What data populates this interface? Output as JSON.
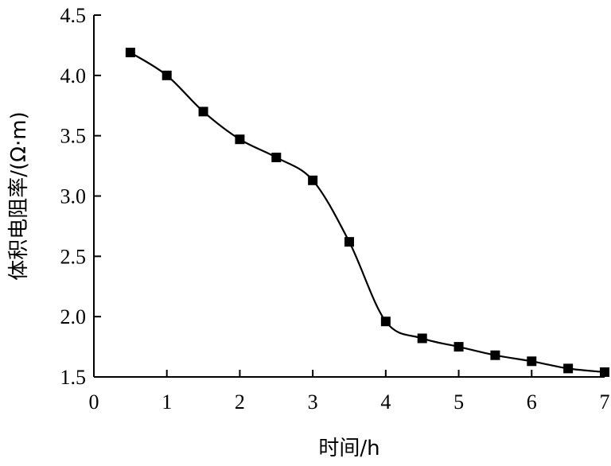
{
  "chart_data": {
    "type": "line",
    "title": "",
    "xlabel": "时间/h",
    "ylabel": "体积电阻率/(Ω·m)",
    "xlim": [
      0,
      7
    ],
    "ylim": [
      1.5,
      4.5
    ],
    "xticks": [
      0,
      1,
      2,
      3,
      4,
      5,
      6,
      7
    ],
    "yticks": [
      1.5,
      2.0,
      2.5,
      3.0,
      3.5,
      4.0,
      4.5
    ],
    "xtick_labels": [
      "0",
      "1",
      "2",
      "3",
      "4",
      "5",
      "6",
      "7"
    ],
    "ytick_labels": [
      "1.5",
      "2.0",
      "2.5",
      "3.0",
      "3.5",
      "4.0",
      "4.5"
    ],
    "grid": false,
    "legend": "none",
    "series": [
      {
        "marker": "square",
        "color": "#000000",
        "x": [
          0.5,
          1.0,
          1.5,
          2.0,
          2.5,
          3.0,
          3.5,
          4.0,
          4.5,
          5.0,
          5.5,
          6.0,
          6.5,
          7.0
        ],
        "y": [
          4.19,
          4.0,
          3.7,
          3.47,
          3.32,
          3.13,
          2.62,
          1.96,
          1.82,
          1.75,
          1.68,
          1.63,
          1.57,
          1.54
        ]
      }
    ]
  }
}
